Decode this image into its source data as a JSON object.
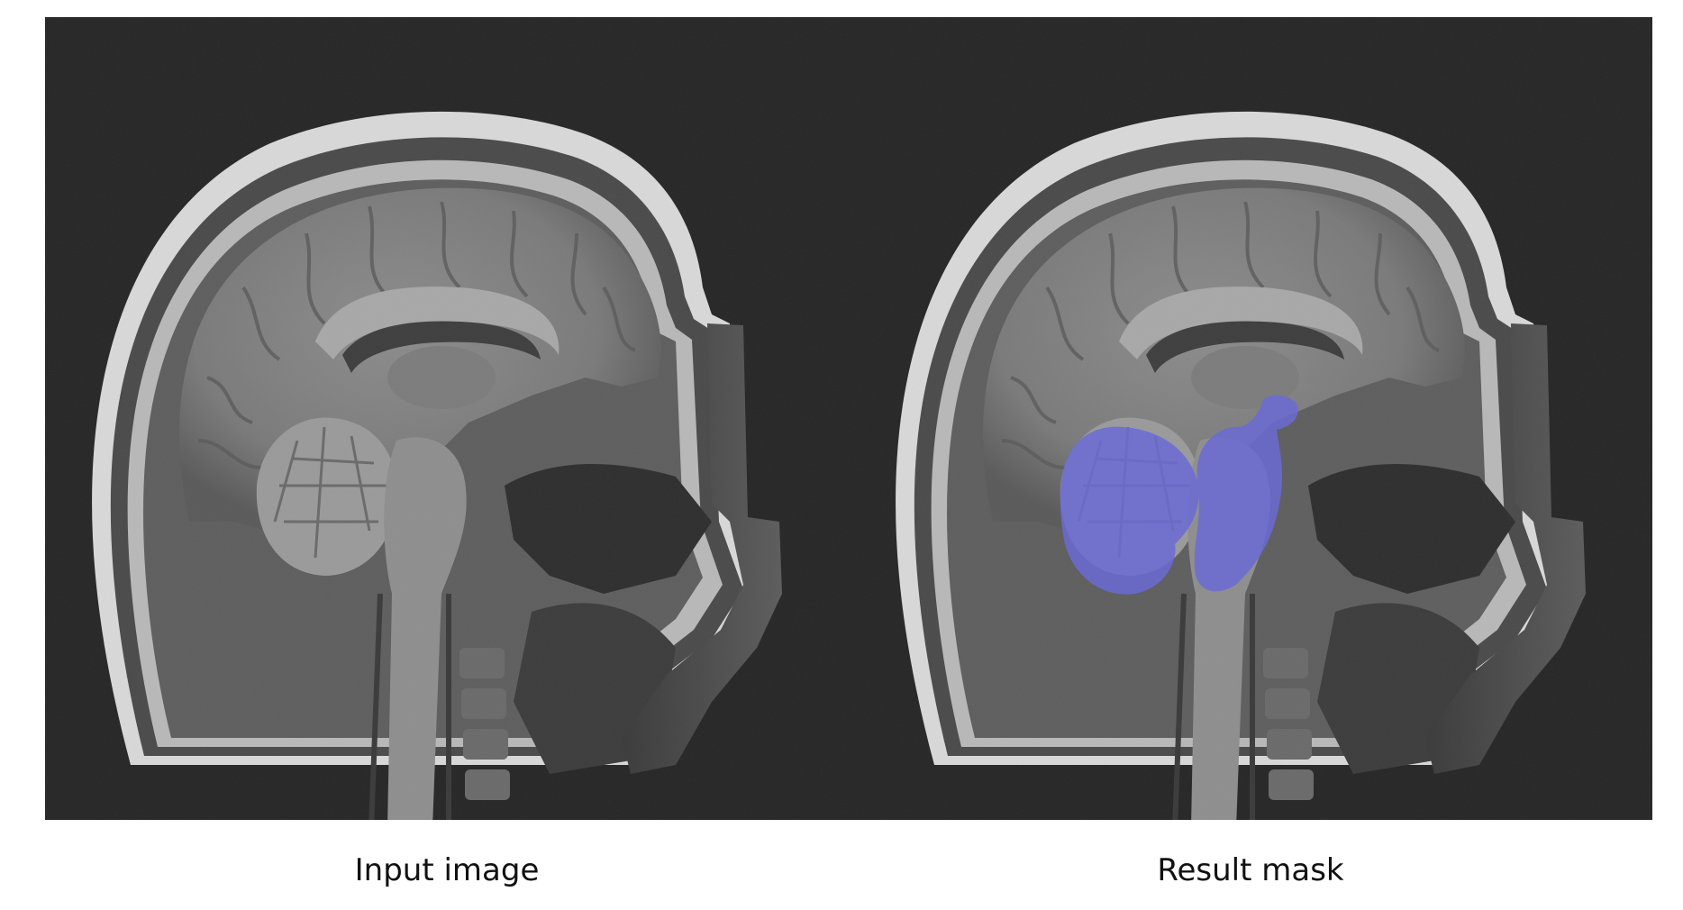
{
  "panels": [
    {
      "id": "input",
      "caption": "Input image",
      "has_mask": false
    },
    {
      "id": "result",
      "caption": "Result mask",
      "has_mask": true
    }
  ],
  "colors": {
    "background": "#ffffff",
    "scan_background": "#262626",
    "mask": "#6b6bd6"
  }
}
